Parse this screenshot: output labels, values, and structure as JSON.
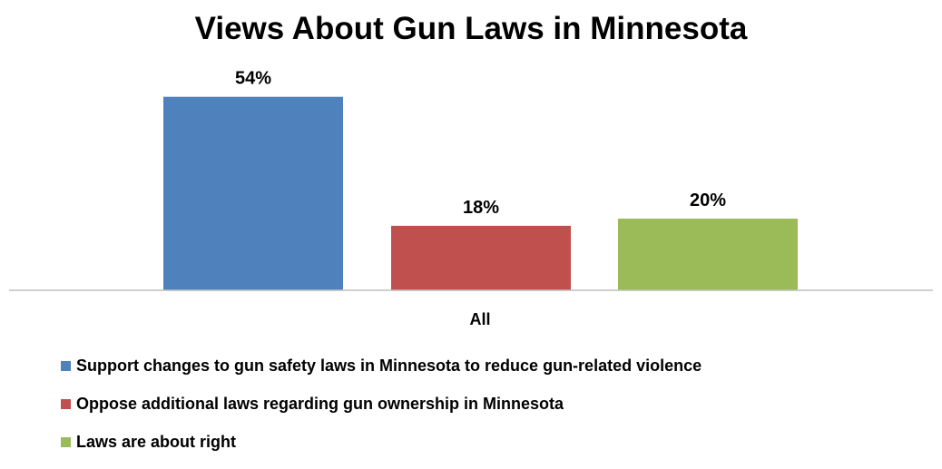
{
  "chart_data": {
    "type": "bar",
    "title": "Views About Gun Laws in Minnesota",
    "categories": [
      "All"
    ],
    "series": [
      {
        "name": "Support changes to gun safety laws in Minnesota to reduce gun-related violence",
        "values": [
          54
        ],
        "label": "54%",
        "color": "#4F81BD"
      },
      {
        "name": "Oppose additional laws regarding gun ownership in Minnesota",
        "values": [
          18
        ],
        "label": "18%",
        "color": "#C0504D"
      },
      {
        "name": "Laws are about right",
        "values": [
          20
        ],
        "label": "20%",
        "color": "#9BBB59"
      }
    ],
    "ylim": [
      0,
      60
    ],
    "grid": false,
    "legend_position": "bottom",
    "value_unit": "%"
  }
}
